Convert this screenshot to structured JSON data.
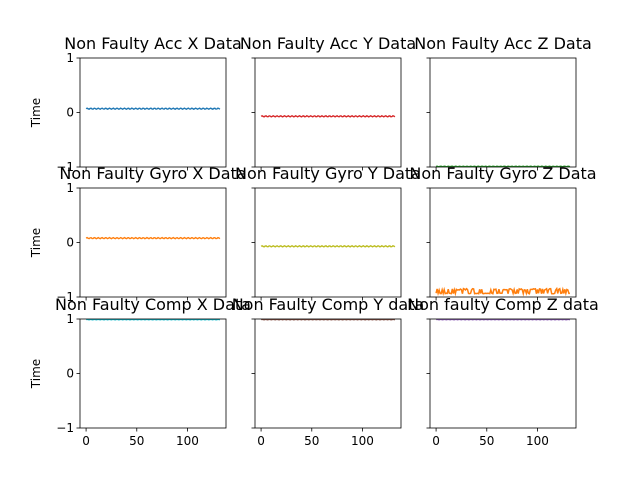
{
  "chart_data": [
    {
      "type": "line",
      "title": "Non Faulty Acc X Data",
      "ylabel": "Time",
      "xlim": [
        -6,
        138
      ],
      "ylim": [
        -1,
        1
      ],
      "show_xticks": false,
      "show_yticks": true,
      "color": "#1f77b4",
      "series": [
        {
          "x_start": 0,
          "x_end": 132,
          "base": 0.07,
          "amp": 0.01,
          "style": "wave"
        }
      ]
    },
    {
      "type": "line",
      "title": "Non Faulty Acc Y Data",
      "ylabel": "",
      "xlim": [
        -6,
        138
      ],
      "ylim": [
        -1,
        1
      ],
      "show_xticks": false,
      "show_yticks": false,
      "color": "#d62728",
      "series": [
        {
          "x_start": 0,
          "x_end": 132,
          "base": -0.07,
          "amp": 0.01,
          "style": "wave"
        }
      ]
    },
    {
      "type": "line",
      "title": "Non Faulty Acc Z Data",
      "ylabel": "",
      "xlim": [
        -6,
        138
      ],
      "ylim": [
        -1,
        1
      ],
      "show_xticks": false,
      "show_yticks": false,
      "color": "#2ca02c",
      "series": [
        {
          "x_start": 0,
          "x_end": 132,
          "base": -0.99,
          "amp": 0.005,
          "style": "wave"
        }
      ]
    },
    {
      "type": "line",
      "title": "Non Faulty Gyro X Data",
      "ylabel": "Time",
      "xlim": [
        -6,
        138
      ],
      "ylim": [
        -1,
        1
      ],
      "show_xticks": false,
      "show_yticks": true,
      "color": "#ff7f0e",
      "series": [
        {
          "x_start": 0,
          "x_end": 132,
          "base": 0.08,
          "amp": 0.01,
          "style": "wave"
        }
      ]
    },
    {
      "type": "line",
      "title": "Non Faulty Gyro Y Data",
      "ylabel": "",
      "xlim": [
        -6,
        138
      ],
      "ylim": [
        -1,
        1
      ],
      "show_xticks": false,
      "show_yticks": false,
      "color": "#bcbd22",
      "series": [
        {
          "x_start": 0,
          "x_end": 132,
          "base": -0.07,
          "amp": 0.01,
          "style": "wave"
        }
      ]
    },
    {
      "type": "line",
      "title": "Non Faulty Gyro Z Data",
      "ylabel": "",
      "xlim": [
        -6,
        138
      ],
      "ylim": [
        -1,
        1
      ],
      "show_xticks": false,
      "show_yticks": false,
      "color": "#ff7f0e",
      "series": [
        {
          "x_start": 0,
          "x_end": 132,
          "base": -0.93,
          "amp": 0.06,
          "style": "spiky"
        }
      ]
    },
    {
      "type": "line",
      "title": "Non Faulty Comp X Data",
      "ylabel": "Time",
      "xlim": [
        -6,
        138
      ],
      "ylim": [
        -1,
        1
      ],
      "show_xticks": true,
      "show_yticks": true,
      "color": "#17becf",
      "series": [
        {
          "x_start": 0,
          "x_end": 132,
          "base": 0.99,
          "amp": 0.005,
          "style": "wave"
        }
      ]
    },
    {
      "type": "line",
      "title": "Non Faulty Comp Y data",
      "ylabel": "",
      "xlim": [
        -6,
        138
      ],
      "ylim": [
        -1,
        1
      ],
      "show_xticks": true,
      "show_yticks": false,
      "color": "#8c564b",
      "series": [
        {
          "x_start": 0,
          "x_end": 132,
          "base": 0.99,
          "amp": 0.005,
          "style": "wave"
        }
      ]
    },
    {
      "type": "line",
      "title": "Non faulty Comp Z data",
      "ylabel": "",
      "xlim": [
        -6,
        138
      ],
      "ylim": [
        -1,
        1
      ],
      "show_xticks": true,
      "show_yticks": false,
      "color": "#9467bd",
      "series": [
        {
          "x_start": 0,
          "x_end": 132,
          "base": 0.99,
          "amp": 0.005,
          "style": "wave"
        }
      ]
    }
  ],
  "yticks": [
    -1,
    0,
    1
  ],
  "xticks": [
    0,
    50,
    100
  ]
}
